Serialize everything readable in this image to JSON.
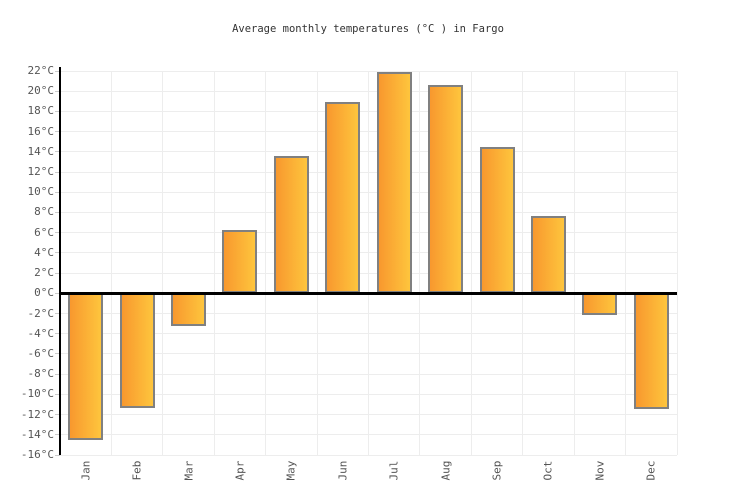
{
  "chart_data": {
    "type": "bar",
    "title": "Average monthly temperatures (°C ) in Fargo",
    "categories": [
      "Jan",
      "Feb",
      "Mar",
      "Apr",
      "May",
      "Jun",
      "Jul",
      "Aug",
      "Sep",
      "Oct",
      "Nov",
      "Dec"
    ],
    "values": [
      -14.5,
      -11.3,
      -3.2,
      6.3,
      13.6,
      18.9,
      21.9,
      20.6,
      14.5,
      7.7,
      -2.1,
      -11.4
    ],
    "unit": "°C",
    "xlabel": "",
    "ylabel": "",
    "ylim": [
      -16,
      22
    ],
    "ytick_step": 2,
    "y_tick_labels": [
      "22°C",
      "20°C",
      "18°C",
      "16°C",
      "14°C",
      "12°C",
      "10°C",
      "8°C",
      "6°C",
      "4°C",
      "2°C",
      "0°C",
      "-2°C",
      "-4°C",
      "-6°C",
      "-8°C",
      "-10°C",
      "-12°C",
      "-14°C",
      "-16°C"
    ],
    "grid": true,
    "legend": "none",
    "colors": {
      "bar_gradient_start": "#f8982e",
      "bar_gradient_end": "#fec53d",
      "bar_border": "#808080",
      "gridline": "#ededed",
      "axis": "#000000",
      "tick": "#cccccc",
      "label_text": "#555555",
      "title_text": "#333333",
      "background": "#ffffff"
    }
  }
}
